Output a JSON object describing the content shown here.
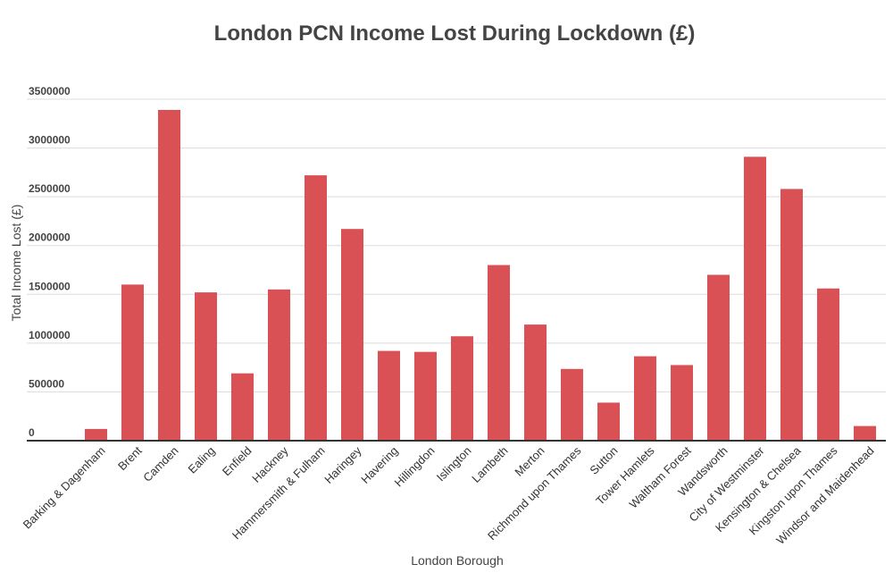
{
  "chart_data": {
    "type": "bar",
    "title": "London PCN Income Lost During Lockdown (£)",
    "xlabel": "London Borough",
    "ylabel": "Total Income Lost (£)",
    "ylim": [
      0,
      3500000
    ],
    "yticks": [
      "0",
      "500000",
      "1000000",
      "1500000",
      "2000000",
      "2500000",
      "3000000",
      "3500000"
    ],
    "bar_color": "#d95055",
    "grid": true,
    "categories": [
      "Barking & Dagenham",
      "Brent",
      "Camden",
      "Ealing",
      "Enfield",
      "Hackney",
      "Hammersmith & Fulham",
      "Haringey",
      "Havering",
      "Hillingdon",
      "Islington",
      "Lambeth",
      "Merton",
      "Richmond upon Thames",
      "Sutton",
      "Tower Hamlets",
      "Waltham Forest",
      "Wandsworth",
      "City of Westminster",
      "Kensington & Chelsea",
      "Kingston upon Thames",
      "Windsor and Maidenhead"
    ],
    "values": [
      120000,
      1600000,
      3390000,
      1520000,
      690000,
      1550000,
      2720000,
      2170000,
      920000,
      910000,
      1070000,
      1800000,
      1190000,
      735000,
      390000,
      865000,
      775000,
      1700000,
      2910000,
      2580000,
      1560000,
      150000
    ]
  }
}
